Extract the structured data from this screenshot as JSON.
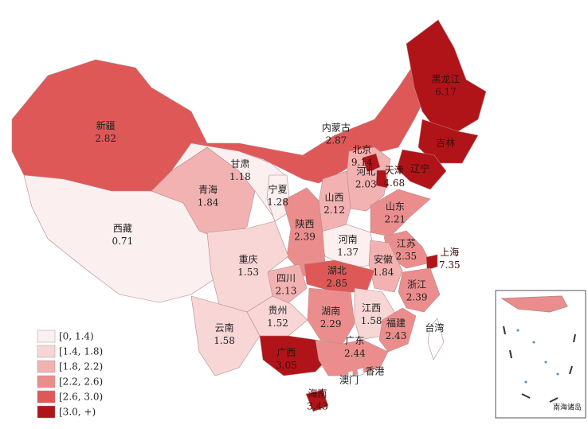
{
  "map": {
    "provinces": [
      {
        "name": "新疆",
        "value": 2.82,
        "class": 4
      },
      {
        "name": "西藏",
        "value": 0.71,
        "class": 0
      },
      {
        "name": "青海",
        "value": 1.84,
        "class": 2
      },
      {
        "name": "甘肃",
        "value": 1.18,
        "class": 0
      },
      {
        "name": "内蒙古",
        "value": 2.87,
        "class": 4
      },
      {
        "name": "宁夏",
        "value": 1.28,
        "class": 0
      },
      {
        "name": "黑龙江",
        "value": 6.17,
        "class": 5
      },
      {
        "name": "吉林",
        "class": 5
      },
      {
        "name": "辽宁",
        "class": 5
      },
      {
        "name": "河北",
        "value": 2.03,
        "class": 2
      },
      {
        "name": "北京",
        "value": 9.14,
        "class": 5
      },
      {
        "name": "天津",
        "value": 4.68,
        "class": 5
      },
      {
        "name": "山西",
        "value": 2.12,
        "class": 2
      },
      {
        "name": "山东",
        "value": 2.21,
        "class": 3
      },
      {
        "name": "河南",
        "value": 1.37,
        "class": 0
      },
      {
        "name": "陕西",
        "value": 2.39,
        "class": 3
      },
      {
        "name": "江苏",
        "value": 2.35,
        "class": 3
      },
      {
        "name": "安徽",
        "value": 1.84,
        "class": 2
      },
      {
        "name": "上海",
        "value": 7.35,
        "class": 5
      },
      {
        "name": "浙江",
        "value": 2.39,
        "class": 3
      },
      {
        "name": "湖北",
        "value": 2.85,
        "class": 4
      },
      {
        "name": "四川",
        "value": 2.13,
        "class": 2
      },
      {
        "name": "重庆",
        "value": 1.53,
        "class": 1
      },
      {
        "name": "贵州",
        "value": 1.52,
        "class": 1
      },
      {
        "name": "湖南",
        "value": 2.29,
        "class": 3
      },
      {
        "name": "江西",
        "value": 1.58,
        "class": 1
      },
      {
        "name": "福建",
        "value": 2.43,
        "class": 3
      },
      {
        "name": "云南",
        "value": 1.58,
        "class": 1
      },
      {
        "name": "广西",
        "value": 3.05,
        "class": 5
      },
      {
        "name": "广东",
        "value": 2.44,
        "class": 3
      },
      {
        "name": "海南",
        "value": 3.43,
        "class": 5
      },
      {
        "name": "台湾"
      },
      {
        "name": "香港"
      },
      {
        "name": "澳门"
      }
    ],
    "legend": [
      {
        "label": "[0, 1.4)",
        "color": "#fcefef"
      },
      {
        "label": "[1.4, 1.8)",
        "color": "#f8d6d6"
      },
      {
        "label": "[1.8, 2.2)",
        "color": "#f2b2b2"
      },
      {
        "label": "[2.2, 2.6)",
        "color": "#ec8d8d"
      },
      {
        "label": "[2.6, 3.0)",
        "color": "#df5858"
      },
      {
        "label": "[3.0, +)",
        "color": "#b01419"
      }
    ],
    "inset": {
      "title": "南海诸岛"
    }
  }
}
